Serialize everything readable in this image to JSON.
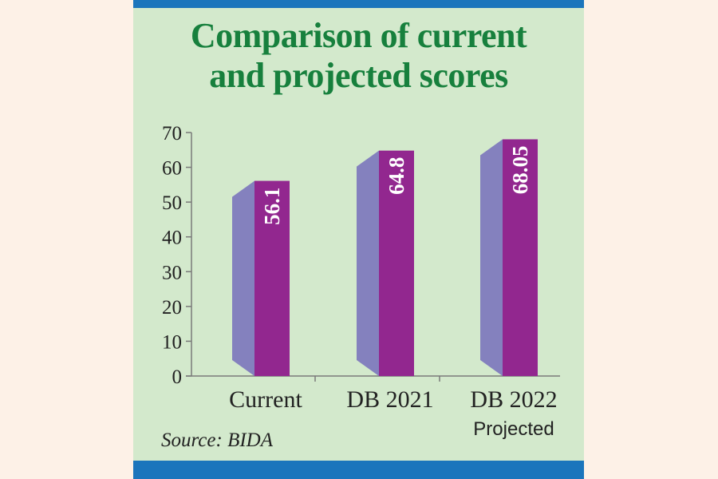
{
  "chart_data": {
    "type": "bar",
    "title": "Comparison of current and projected scores",
    "title_lines": [
      "Comparison of current",
      "and projected scores"
    ],
    "categories": [
      "Current",
      "DB 2021",
      "DB 2022"
    ],
    "category_sublabels": [
      "",
      "",
      "Projected"
    ],
    "values": [
      56.1,
      64.8,
      68.05
    ],
    "value_labels": [
      "56.1",
      "64.8",
      "68.05"
    ],
    "ylim": [
      0,
      70
    ],
    "yticks": [
      0,
      10,
      20,
      30,
      40,
      50,
      60,
      70
    ],
    "xlabel": "",
    "ylabel": "",
    "grid": false,
    "style": "3d-bars",
    "colors": {
      "bar_front": "#92278f",
      "bar_side": "#8481be",
      "title": "#17803d",
      "background": "#d3e9cc",
      "frame": "#1b75bc"
    },
    "source": "Source: BIDA"
  }
}
